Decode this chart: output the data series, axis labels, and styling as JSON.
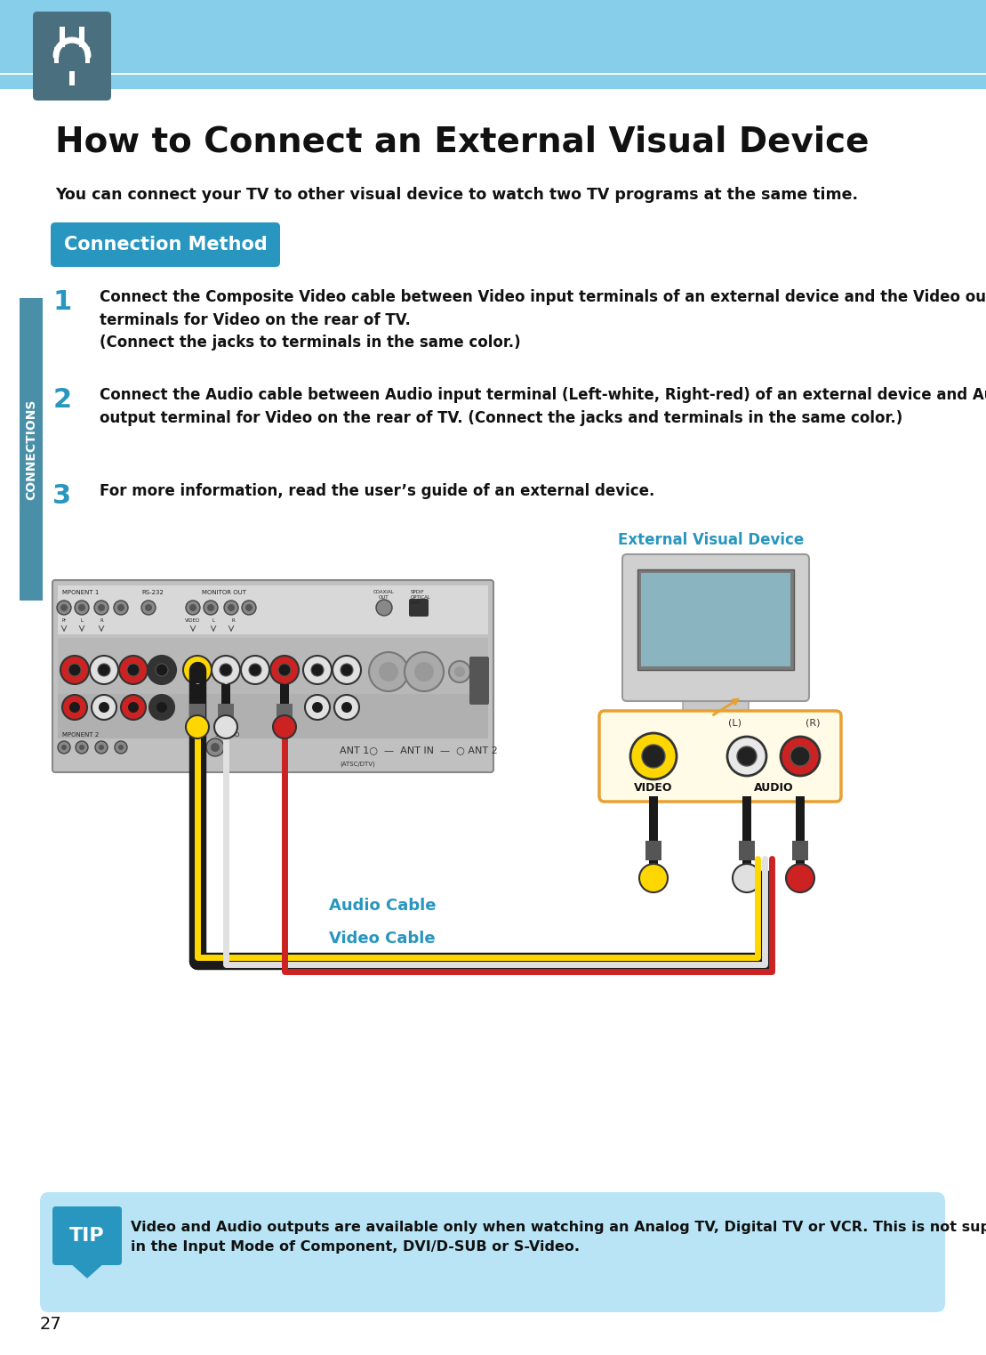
{
  "bg_color": "#ffffff",
  "header_bg_color": "#87CEEB",
  "page_number": "27",
  "title": "How to Connect an External Visual Device",
  "subtitle": "You can connect your TV to other visual device to watch two TV programs at the same time.",
  "section_label_bg": "#2896BE",
  "section_label_text": "Connection Method",
  "section_label_text_color": "#ffffff",
  "connections_sidebar_color": "#4a8fa8",
  "connections_sidebar_text": "CONNECTIONS",
  "step1_num": "1",
  "step1_text": "Connect the Composite Video cable between Video input terminals of an external device and the Video output\nterminals for Video on the rear of TV.\n(Connect the jacks to terminals in the same color.)",
  "step2_num": "2",
  "step2_text": "Connect the Audio cable between Audio input terminal (Left-white, Right-red) of an external device and Audio\noutput terminal for Video on the rear of TV. (Connect the jacks and terminals in the same color.)",
  "step3_num": "3",
  "step3_text": "For more information, read the user’s guide of an external device.",
  "external_device_label": "External Visual Device",
  "audio_cable_label": "Audio Cable",
  "video_cable_label": "Video Cable",
  "tip_bg_color": "#B8E4F5",
  "tip_text": "Video and Audio outputs are available only when watching an Analog TV, Digital TV or VCR. This is not supported\nin the Input Mode of Component, DVI/D-SUB or S-Video.",
  "tip_label_color": "#2896BE",
  "number_color": "#2896BE",
  "icon_bg_color": "#4a7080"
}
